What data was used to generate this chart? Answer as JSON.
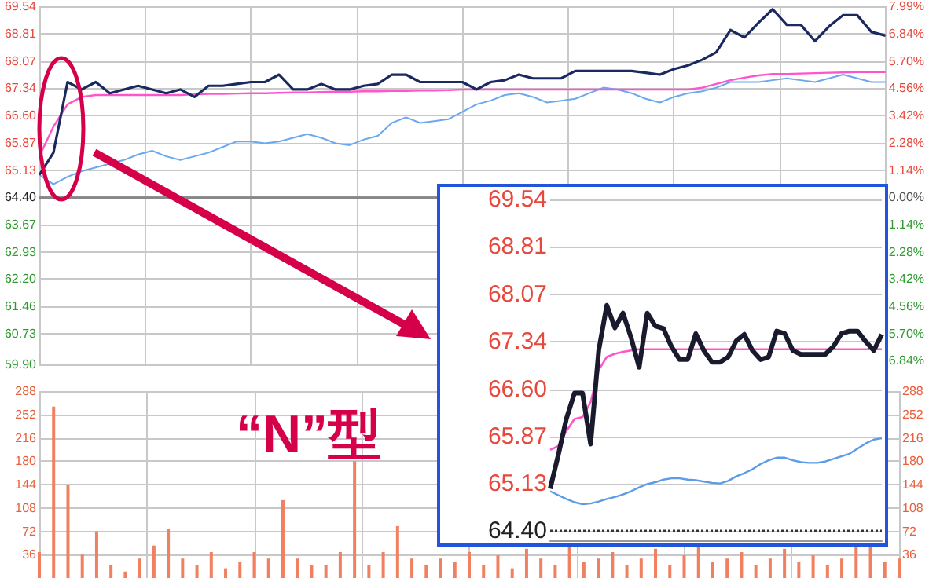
{
  "chart_data": [
    {
      "type": "line",
      "categories": [
        null,
        null,
        null,
        null,
        null,
        null,
        null,
        null,
        null,
        null,
        null,
        null,
        null,
        null,
        null,
        null,
        null,
        null,
        null,
        null,
        null,
        null,
        null,
        null,
        null,
        null,
        null,
        null,
        null,
        null,
        null,
        null,
        null,
        null,
        null,
        null,
        null,
        null,
        null,
        null,
        null,
        null,
        null,
        null,
        null,
        null,
        null,
        null,
        null,
        null,
        null,
        null,
        null,
        null,
        null,
        null,
        null,
        null,
        null,
        null,
        null
      ],
      "series": [
        {
          "color": "#1a2a60",
          "values": [
            65.0,
            65.6,
            67.5,
            67.3,
            67.5,
            67.2,
            67.3,
            67.4,
            67.3,
            67.2,
            67.3,
            67.1,
            67.4,
            67.4,
            67.45,
            67.5,
            67.5,
            67.7,
            67.3,
            67.3,
            67.45,
            67.3,
            67.3,
            67.4,
            67.45,
            67.7,
            67.7,
            67.5,
            67.5,
            67.5,
            67.5,
            67.3,
            67.5,
            67.55,
            67.7,
            67.6,
            67.6,
            67.6,
            67.8,
            67.8,
            67.8,
            67.8,
            67.8,
            67.75,
            67.7,
            67.85,
            67.95,
            68.1,
            68.3,
            68.9,
            68.7,
            69.1,
            69.46,
            69.04,
            69.04,
            68.6,
            69.0,
            69.3,
            69.3,
            68.85,
            68.75
          ]
        },
        {
          "color": "#ff55cc",
          "values": [
            65.5,
            66.3,
            66.9,
            67.1,
            67.15,
            67.15,
            67.15,
            67.15,
            67.15,
            67.15,
            67.15,
            67.17,
            67.18,
            67.18,
            67.19,
            67.2,
            67.2,
            67.21,
            67.22,
            67.22,
            67.23,
            67.24,
            67.24,
            67.25,
            67.25,
            67.26,
            67.26,
            67.27,
            67.27,
            67.28,
            67.3,
            67.3,
            67.3,
            67.3,
            67.3,
            67.3,
            67.3,
            67.3,
            67.3,
            67.3,
            67.3,
            67.3,
            67.3,
            67.3,
            67.3,
            67.3,
            67.3,
            67.35,
            67.45,
            67.55,
            67.62,
            67.68,
            67.72,
            67.72,
            67.73,
            67.74,
            67.75,
            67.76,
            67.77,
            67.77,
            67.77
          ]
        },
        {
          "color": "#6aa8f0",
          "values": [
            65.0,
            64.75,
            64.95,
            65.1,
            65.2,
            65.3,
            65.4,
            65.55,
            65.65,
            65.5,
            65.4,
            65.5,
            65.6,
            65.75,
            65.9,
            65.9,
            65.85,
            65.9,
            66.0,
            66.1,
            66.0,
            65.85,
            65.8,
            65.95,
            66.05,
            66.4,
            66.55,
            66.4,
            66.45,
            66.5,
            66.7,
            66.9,
            67.0,
            67.15,
            67.2,
            67.1,
            66.95,
            67.0,
            67.05,
            67.2,
            67.35,
            67.3,
            67.2,
            67.05,
            66.95,
            67.1,
            67.2,
            67.25,
            67.35,
            67.5,
            67.5,
            67.5,
            67.55,
            67.6,
            67.55,
            67.5,
            67.6,
            67.7,
            67.6,
            67.5,
            67.5
          ]
        }
      ],
      "ylim": [
        59.9,
        69.54
      ],
      "yticks": [
        69.54,
        68.81,
        68.07,
        67.34,
        {
          "value": 66.6,
          "label": "66.60"
        },
        65.87,
        65.13,
        {
          "value": 64.4,
          "label": "64.40"
        },
        63.67,
        62.93,
        {
          "value": 62.2,
          "label": "62.20"
        },
        61.46,
        60.73,
        {
          "value": 59.9,
          "label": "59.90"
        }
      ],
      "y2lim": [
        -6.99,
        7.99
      ],
      "y2ticks": [
        {
          "value": 7.99,
          "label": "7.99%"
        },
        {
          "value": 6.84,
          "label": "6.84%"
        },
        {
          "value": 5.7,
          "label": "5.70%"
        },
        {
          "value": 4.56,
          "label": "4.56%"
        },
        {
          "value": 3.42,
          "label": "3.42%"
        },
        {
          "value": 2.28,
          "label": "2.28%"
        },
        {
          "value": 1.14,
          "label": "1.14%"
        },
        {
          "value": 0,
          "label": "0.00%"
        },
        {
          "value": -1.14,
          "label": "1.14%"
        },
        {
          "value": -2.28,
          "label": "2.28%"
        },
        {
          "value": -3.42,
          "label": "3.42%"
        },
        {
          "value": -4.56,
          "label": "4.56%"
        },
        {
          "value": -5.7,
          "label": "5.70%"
        },
        {
          "value": -6.84,
          "label": "6.84%"
        }
      ],
      "ref_lines": [
        {
          "axis": "y",
          "value": 64.4,
          "color": "#888888"
        }
      ],
      "grid": true,
      "tick_labels": "y",
      "marker": "none",
      "annotations": [
        "“N”型"
      ]
    },
    {
      "type": "bar",
      "categories": [
        null,
        null,
        null,
        null,
        null,
        null,
        null,
        null,
        null,
        null,
        null,
        null,
        null,
        null,
        null,
        null,
        null,
        null,
        null,
        null,
        null,
        null,
        null,
        null,
        null,
        null,
        null,
        null,
        null,
        null,
        null,
        null,
        null,
        null,
        null,
        null,
        null,
        null,
        null,
        null,
        null,
        null,
        null,
        null,
        null,
        null,
        null,
        null,
        null,
        null,
        null,
        null,
        null,
        null,
        null,
        null,
        null,
        null,
        null,
        null,
        null
      ],
      "color": "#f08060",
      "values": [
        40,
        264,
        144,
        36,
        72,
        20,
        10,
        30,
        50,
        76,
        30,
        20,
        40,
        15,
        25,
        40,
        30,
        120,
        30,
        20,
        20,
        40,
        180,
        20,
        40,
        80,
        30,
        20,
        30,
        25,
        40,
        20,
        35,
        15,
        45,
        30,
        20,
        50,
        25,
        30,
        40,
        20,
        30,
        45,
        20,
        35,
        50,
        25,
        30,
        40,
        20,
        30,
        45,
        25,
        35,
        20,
        30,
        55,
        50,
        25,
        30
      ],
      "ylim": [
        0,
        288
      ],
      "yticks": [
        288,
        252,
        216,
        180,
        144,
        108,
        72,
        36
      ],
      "y2lim": [
        0,
        288
      ],
      "y2ticks": [
        288,
        252,
        216,
        180,
        144,
        108,
        72,
        36
      ],
      "grid": true,
      "tick_labels": "y"
    },
    {
      "type": "line",
      "categories": [
        null,
        null,
        null,
        null,
        null,
        null,
        null,
        null,
        null,
        null,
        null,
        null,
        null,
        null,
        null,
        null,
        null,
        null,
        null,
        null,
        null,
        null,
        null,
        null,
        null,
        null,
        null,
        null,
        null,
        null,
        null,
        null,
        null,
        null,
        null,
        null,
        null,
        null,
        null,
        null,
        null,
        null
      ],
      "series": [
        {
          "color": "#1a1a2e",
          "values": [
            65.06,
            65.58,
            66.14,
            66.54,
            66.54,
            65.75,
            67.2,
            67.9,
            67.55,
            67.78,
            67.4,
            66.94,
            67.78,
            67.58,
            67.54,
            67.26,
            67.06,
            67.06,
            67.46,
            67.2,
            67.02,
            67.02,
            67.1,
            67.35,
            67.45,
            67.2,
            67.06,
            67.1,
            67.5,
            67.46,
            67.2,
            67.14,
            67.14,
            67.14,
            67.14,
            67.26,
            67.46,
            67.5,
            67.5,
            67.34,
            67.2,
            67.45
          ]
        },
        {
          "color": "#ff55cc",
          "values": [
            65.66,
            65.72,
            65.95,
            66.14,
            66.17,
            66.4,
            66.9,
            67.1,
            67.15,
            67.18,
            67.2,
            67.22,
            67.22,
            67.22,
            67.22,
            67.22,
            67.22,
            67.22,
            67.22,
            67.22,
            67.22,
            67.22,
            67.22,
            67.22,
            67.22,
            67.22,
            67.22,
            67.22,
            67.22,
            67.22,
            67.22,
            67.22,
            67.22,
            67.22,
            67.22,
            67.22,
            67.22,
            67.22,
            67.22,
            67.22,
            67.22,
            67.22
          ]
        },
        {
          "color": "#5b9be8",
          "values": [
            65.02,
            64.96,
            64.9,
            64.85,
            64.82,
            64.83,
            64.86,
            64.9,
            64.93,
            64.97,
            65.02,
            65.08,
            65.13,
            65.16,
            65.2,
            65.22,
            65.22,
            65.2,
            65.19,
            65.17,
            65.15,
            65.14,
            65.18,
            65.25,
            65.3,
            65.36,
            65.44,
            65.5,
            65.54,
            65.54,
            65.5,
            65.47,
            65.46,
            65.46,
            65.48,
            65.52,
            65.56,
            65.6,
            65.68,
            65.76,
            65.82,
            65.84
          ]
        }
      ],
      "ylim": [
        64.26,
        69.54
      ],
      "yticks": [
        69.54,
        68.81,
        68.07,
        67.34,
        {
          "value": 66.6,
          "label": "66.60"
        },
        65.87,
        65.13,
        {
          "value": 64.4,
          "label": "64.40"
        }
      ],
      "ref_lines": [
        {
          "axis": "y",
          "value": 64.4,
          "color": "#333333",
          "line_style": "dotted"
        }
      ],
      "grid": "y",
      "tick_labels": "y",
      "marker": "none"
    }
  ]
}
